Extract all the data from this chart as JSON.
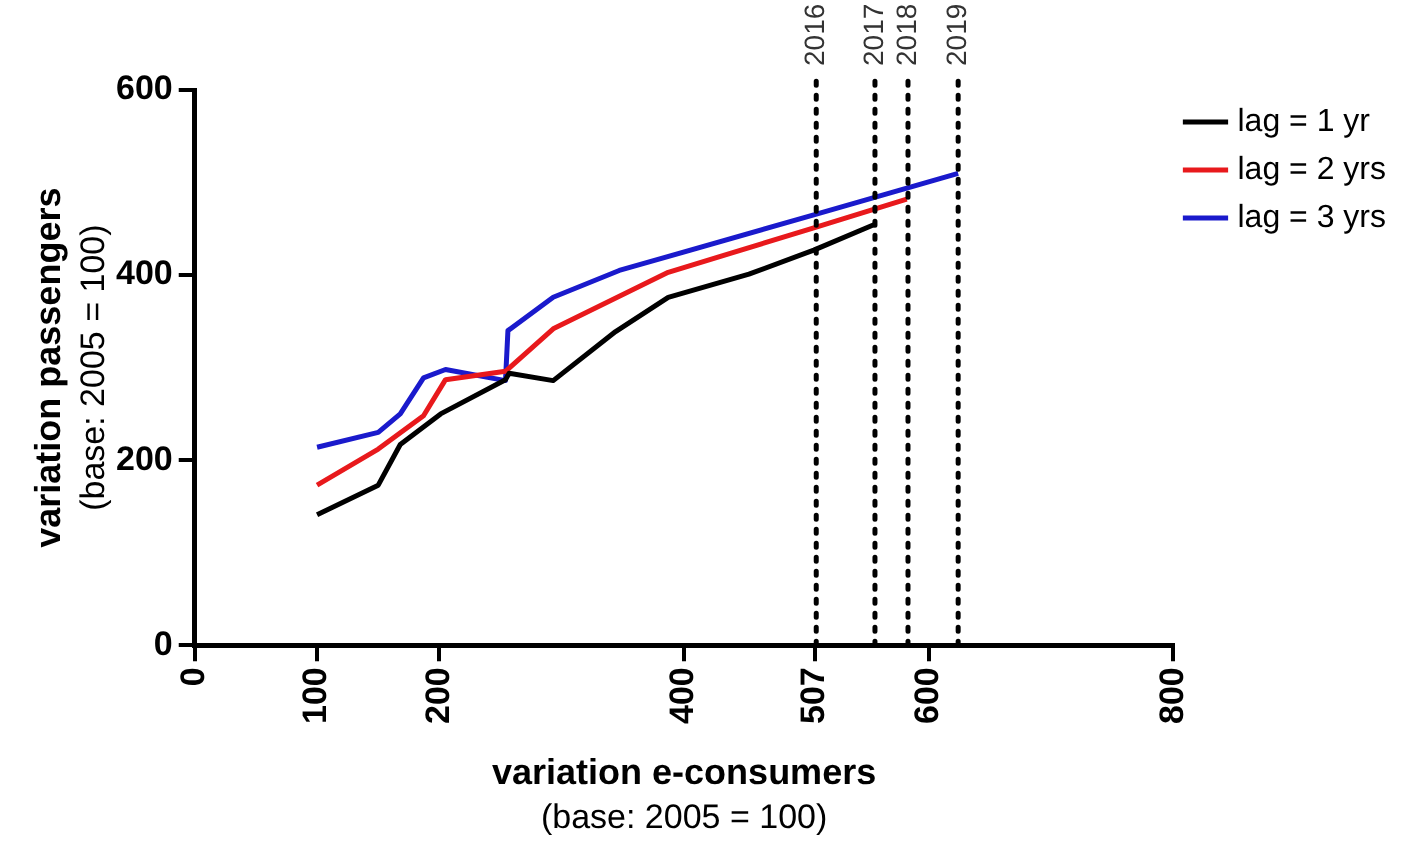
{
  "chart_data": {
    "type": "line",
    "xlabel": "variation e-consumers\n(base: 2005 = 100)",
    "ylabel": "variation passengers\n(base: 2005 = 100)",
    "xlim": [
      0,
      800
    ],
    "xticks": [
      0,
      100,
      200,
      400,
      507,
      600,
      800
    ],
    "ylim": [
      0,
      600
    ],
    "yticks": [
      0,
      200,
      400,
      600
    ],
    "grid": false,
    "legend": "right",
    "marker": "none",
    "line_style": "solid",
    "series": [
      {
        "name": "lag = 1 yr",
        "color": "#000000",
        "x": [
          100,
          150,
          168,
          201,
          254,
          257,
          293,
          344,
          387,
          453,
          506,
          556
        ],
        "values": [
          141,
          173,
          217,
          250,
          287,
          294,
          286,
          339,
          376,
          401,
          427,
          455
        ]
      },
      {
        "name": "lag = 2 yrs",
        "color": "#e8191c",
        "x": [
          100,
          150,
          187,
          205,
          254,
          293,
          387,
          506,
          582
        ],
        "values": [
          173,
          212,
          248,
          287,
          296,
          342,
          403,
          451,
          482
        ]
      },
      {
        "name": "lag = 3 yrs",
        "color": "#1a1acc",
        "x": [
          100,
          150,
          168,
          187,
          205,
          254,
          256,
          293,
          347,
          506,
          624
        ],
        "values": [
          214,
          230,
          250,
          289,
          298,
          286,
          340,
          376,
          405,
          465,
          510
        ]
      }
    ],
    "ref_lines": [
      {
        "axis": "x",
        "value": 508,
        "color": "#000000",
        "line_style": "dotted"
      },
      {
        "axis": "x",
        "value": 556,
        "color": "#000000",
        "line_style": "dotted"
      },
      {
        "axis": "x",
        "value": 583,
        "color": "#000000",
        "line_style": "dotted"
      },
      {
        "axis": "x",
        "value": 624,
        "color": "#000000",
        "line_style": "dotted"
      }
    ],
    "annotations": [
      "2016",
      "2017",
      "2018",
      "2019"
    ]
  }
}
